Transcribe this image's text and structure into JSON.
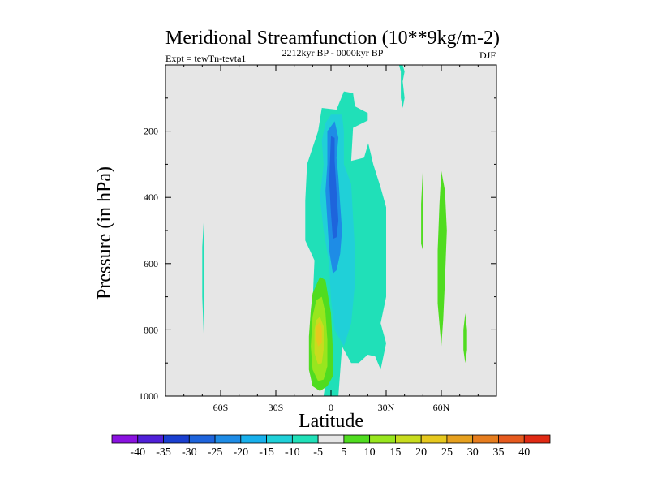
{
  "chart_data": {
    "type": "heatmap",
    "title": "Meridional Streamfunction (10**9kg/m-2)",
    "subtitle_left": "Expt = tewTn-tevta1",
    "subtitle_center": "2212kyr BP - 0000kyr BP",
    "subtitle_right": "DJF",
    "xlabel": "Latitude",
    "ylabel": "Pressure (in hPa)",
    "xlim": [
      -90,
      90
    ],
    "ylim": [
      0,
      1000
    ],
    "y_reversed": true,
    "x_ticks": [
      {
        "value": -60,
        "label": "60S"
      },
      {
        "value": -30,
        "label": "30S"
      },
      {
        "value": 0,
        "label": "0"
      },
      {
        "value": 30,
        "label": "30N"
      },
      {
        "value": 60,
        "label": "60N"
      }
    ],
    "y_ticks": [
      {
        "value": 200,
        "label": "200"
      },
      {
        "value": 400,
        "label": "400"
      },
      {
        "value": 600,
        "label": "600"
      },
      {
        "value": 800,
        "label": "800"
      },
      {
        "value": 1000,
        "label": "1000"
      }
    ],
    "background_color": "#e6e6e6",
    "colorbar": {
      "labels": [
        "-40",
        "-35",
        "-30",
        "-25",
        "-20",
        "-15",
        "-10",
        "-5",
        "5",
        "10",
        "15",
        "20",
        "25",
        "30",
        "35",
        "40"
      ],
      "colors": [
        "#8a12e0",
        "#5020d8",
        "#1a3fd0",
        "#1e64dc",
        "#1e8ce6",
        "#18b0ec",
        "#20d0d8",
        "#20e0b8",
        "#e6e6e6",
        "#50dc20",
        "#98e61e",
        "#c8dc1e",
        "#e6c81e",
        "#e6a01e",
        "#e67d1e",
        "#e65a1e",
        "#e02a14"
      ]
    },
    "regions": [
      {
        "name": "tropical-negative-cell-outer",
        "value": -7,
        "points": [
          [
            -13,
            300
          ],
          [
            -7,
            200
          ],
          [
            -5,
            130
          ],
          [
            3,
            135
          ],
          [
            7,
            80
          ],
          [
            12,
            85
          ],
          [
            13,
            125
          ],
          [
            20,
            145
          ],
          [
            20,
            230
          ],
          [
            23,
            300
          ],
          [
            27,
            370
          ],
          [
            30,
            430
          ],
          [
            30,
            700
          ],
          [
            27,
            780
          ],
          [
            30,
            840
          ],
          [
            27,
            920
          ],
          [
            24,
            880
          ],
          [
            20,
            875
          ],
          [
            15,
            900
          ],
          [
            11,
            900
          ],
          [
            6,
            850
          ],
          [
            4,
            1000
          ],
          [
            -4,
            1000
          ],
          [
            -2,
            920
          ],
          [
            -4,
            880
          ],
          [
            -10,
            720
          ],
          [
            -9,
            590
          ],
          [
            -14,
            530
          ],
          [
            -14,
            410
          ]
        ]
      },
      {
        "name": "tropical-negative-cell-inner",
        "value": -15,
        "points": [
          [
            -3,
            175
          ],
          [
            0,
            150
          ],
          [
            6,
            150
          ],
          [
            7,
            200
          ],
          [
            7,
            300
          ],
          [
            11,
            360
          ],
          [
            12,
            460
          ],
          [
            13,
            560
          ],
          [
            13,
            660
          ],
          [
            11,
            780
          ],
          [
            7,
            850
          ],
          [
            4,
            820
          ],
          [
            2,
            800
          ],
          [
            0,
            710
          ],
          [
            -1,
            600
          ],
          [
            -4,
            500
          ],
          [
            -6,
            400
          ],
          [
            -4,
            300
          ],
          [
            -5,
            230
          ]
        ]
      },
      {
        "name": "tropical-negative-cell-core",
        "value": -23,
        "points": [
          [
            -2,
            200
          ],
          [
            2,
            170
          ],
          [
            4,
            220
          ],
          [
            3,
            280
          ],
          [
            4,
            340
          ],
          [
            5,
            420
          ],
          [
            6,
            500
          ],
          [
            5,
            570
          ],
          [
            3,
            620
          ],
          [
            1,
            630
          ],
          [
            -1,
            560
          ],
          [
            -2,
            470
          ],
          [
            -3,
            380
          ],
          [
            -2,
            300
          ]
        ]
      },
      {
        "name": "tropical-negative-cell-max",
        "value": -28,
        "points": [
          [
            0,
            215
          ],
          [
            2,
            220
          ],
          [
            2,
            290
          ],
          [
            3,
            380
          ],
          [
            4,
            470
          ],
          [
            3,
            520
          ],
          [
            1,
            525
          ],
          [
            0,
            450
          ],
          [
            -1,
            350
          ]
        ]
      },
      {
        "name": "ridge-positive-patch",
        "value": 0,
        "points": [
          [
            12,
            190
          ],
          [
            21,
            165
          ],
          [
            23,
            185
          ],
          [
            18,
            280
          ],
          [
            11,
            290
          ]
        ]
      },
      {
        "name": "equatorial-positive-cell-outer",
        "value": 7,
        "points": [
          [
            -6,
            640
          ],
          [
            -3,
            650
          ],
          [
            0,
            750
          ],
          [
            1,
            860
          ],
          [
            1,
            940
          ],
          [
            -2,
            970
          ],
          [
            -6,
            985
          ],
          [
            -10,
            970
          ],
          [
            -12,
            920
          ],
          [
            -12,
            820
          ],
          [
            -11,
            740
          ],
          [
            -10,
            690
          ]
        ]
      },
      {
        "name": "equatorial-positive-cell-middle",
        "value": 12,
        "points": [
          [
            -5,
            700
          ],
          [
            -3,
            750
          ],
          [
            -2,
            830
          ],
          [
            -2,
            910
          ],
          [
            -4,
            950
          ],
          [
            -7,
            955
          ],
          [
            -10,
            920
          ],
          [
            -11,
            850
          ],
          [
            -10,
            760
          ],
          [
            -8,
            710
          ]
        ]
      },
      {
        "name": "equatorial-positive-cell-inner",
        "value": 18,
        "points": [
          [
            -6,
            760
          ],
          [
            -4,
            790
          ],
          [
            -4,
            860
          ],
          [
            -5,
            900
          ],
          [
            -7,
            905
          ],
          [
            -9,
            870
          ],
          [
            -9,
            800
          ],
          [
            -8,
            770
          ]
        ]
      },
      {
        "name": "equatorial-positive-cell-core",
        "value": 24,
        "points": [
          [
            -6,
            775
          ],
          [
            -5,
            800
          ],
          [
            -5,
            840
          ],
          [
            -7,
            850
          ],
          [
            -8,
            830
          ],
          [
            -8,
            790
          ]
        ]
      },
      {
        "name": "southern-negative-sliver",
        "value": -7,
        "points": [
          [
            -69,
            450
          ],
          [
            -69,
            700
          ],
          [
            -69,
            850
          ],
          [
            -70,
            700
          ],
          [
            -70,
            550
          ]
        ]
      },
      {
        "name": "upper-negative-sliver",
        "value": -7,
        "points": [
          [
            37,
            0
          ],
          [
            39,
            0
          ],
          [
            40,
            20
          ],
          [
            39,
            50
          ],
          [
            40,
            100
          ],
          [
            39,
            130
          ],
          [
            38,
            100
          ],
          [
            38,
            20
          ]
        ]
      },
      {
        "name": "northern-positive-cell-a",
        "value": 8,
        "points": [
          [
            60,
            320
          ],
          [
            62,
            380
          ],
          [
            63,
            500
          ],
          [
            62,
            650
          ],
          [
            61,
            770
          ],
          [
            60,
            850
          ],
          [
            58,
            720
          ],
          [
            58,
            560
          ],
          [
            59,
            420
          ]
        ]
      },
      {
        "name": "northern-positive-cell-b",
        "value": 8,
        "points": [
          [
            50,
            310
          ],
          [
            50,
            380
          ],
          [
            50,
            500
          ],
          [
            50,
            560
          ],
          [
            49,
            540
          ],
          [
            49,
            420
          ]
        ]
      },
      {
        "name": "northern-positive-cell-c",
        "value": 8,
        "points": [
          [
            73,
            750
          ],
          [
            74,
            800
          ],
          [
            74,
            860
          ],
          [
            73,
            900
          ],
          [
            72,
            860
          ],
          [
            72,
            800
          ]
        ]
      }
    ]
  }
}
